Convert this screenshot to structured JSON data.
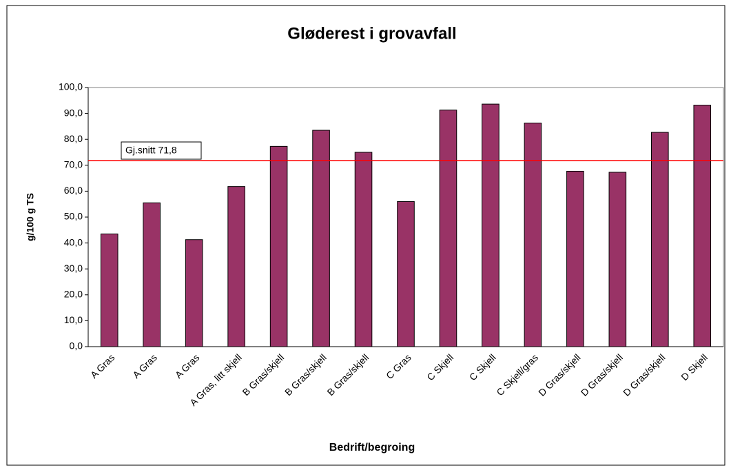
{
  "chart_data": {
    "type": "bar",
    "title": "Gløderest i grovavfall",
    "x_label": "Bedrift/begroing",
    "y_label": "g/100 g TS",
    "categories": [
      "A Gras",
      "A Gras",
      "A Gras",
      "A Gras, litt skjell",
      "B Gras/skjell",
      "B Gras/skjell",
      "B Gras/skjell",
      "C Gras",
      "C Skjell",
      "C Skjell",
      "C Skjell/gras",
      "D Gras/skjell",
      "D Gras/skjell",
      "D Gras/skjell",
      "D Skjell"
    ],
    "values": [
      43.5,
      55.5,
      41.3,
      61.8,
      77.3,
      83.5,
      75.0,
      56.0,
      91.3,
      93.6,
      86.3,
      67.7,
      67.3,
      82.7,
      93.2
    ],
    "color": "#993366",
    "ylim": [
      0,
      100
    ],
    "yticks": [
      {
        "value": 0,
        "label": "0,0"
      },
      {
        "value": 10,
        "label": "10,0"
      },
      {
        "value": 20,
        "label": "20,0"
      },
      {
        "value": 30,
        "label": "30,0"
      },
      {
        "value": 40,
        "label": "40,0"
      },
      {
        "value": 50,
        "label": "50,0"
      },
      {
        "value": 60,
        "label": "60,0"
      },
      {
        "value": 70,
        "label": "70,0"
      },
      {
        "value": 80,
        "label": "80,0"
      },
      {
        "value": 90,
        "label": "90,0"
      },
      {
        "value": 100,
        "label": "100,0"
      }
    ],
    "grid": false,
    "reference_line": {
      "value": 71.8,
      "label": "Gj.snitt 71,8",
      "color": "#ff0000"
    }
  }
}
